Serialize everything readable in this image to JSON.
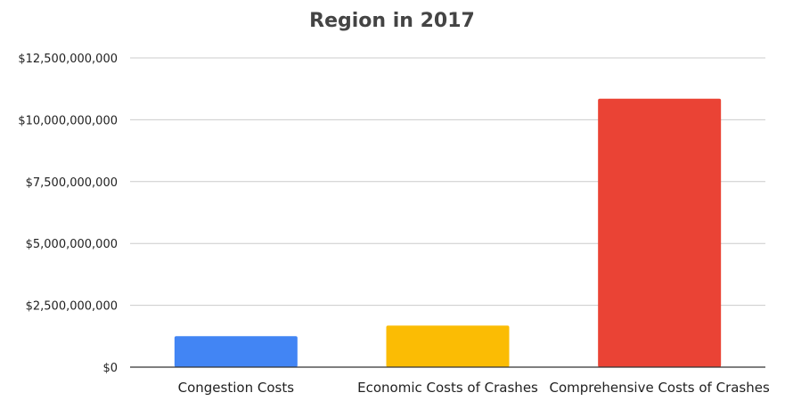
{
  "chart_data": {
    "type": "bar",
    "title": "Region in 2017",
    "xlabel": "",
    "ylabel": "",
    "categories": [
      "Congestion Costs",
      "Economic Costs of Crashes",
      "Comprehensive Costs of Crashes"
    ],
    "values": [
      1250000000,
      1680000000,
      10850000000
    ],
    "colors": [
      "#4285f4",
      "#fbbc04",
      "#ea4335"
    ],
    "ylim": [
      0,
      12500000000
    ],
    "y_ticks": [
      {
        "value": 0,
        "label": "$0"
      },
      {
        "value": 2500000000,
        "label": "$2,500,000,000"
      },
      {
        "value": 5000000000,
        "label": "$5,000,000,000"
      },
      {
        "value": 7500000000,
        "label": "$7,500,000,000"
      },
      {
        "value": 10000000000,
        "label": "$10,000,000,000"
      },
      {
        "value": 12500000000,
        "label": "$12,500,000,000"
      }
    ],
    "grid": true,
    "legend": "none"
  }
}
